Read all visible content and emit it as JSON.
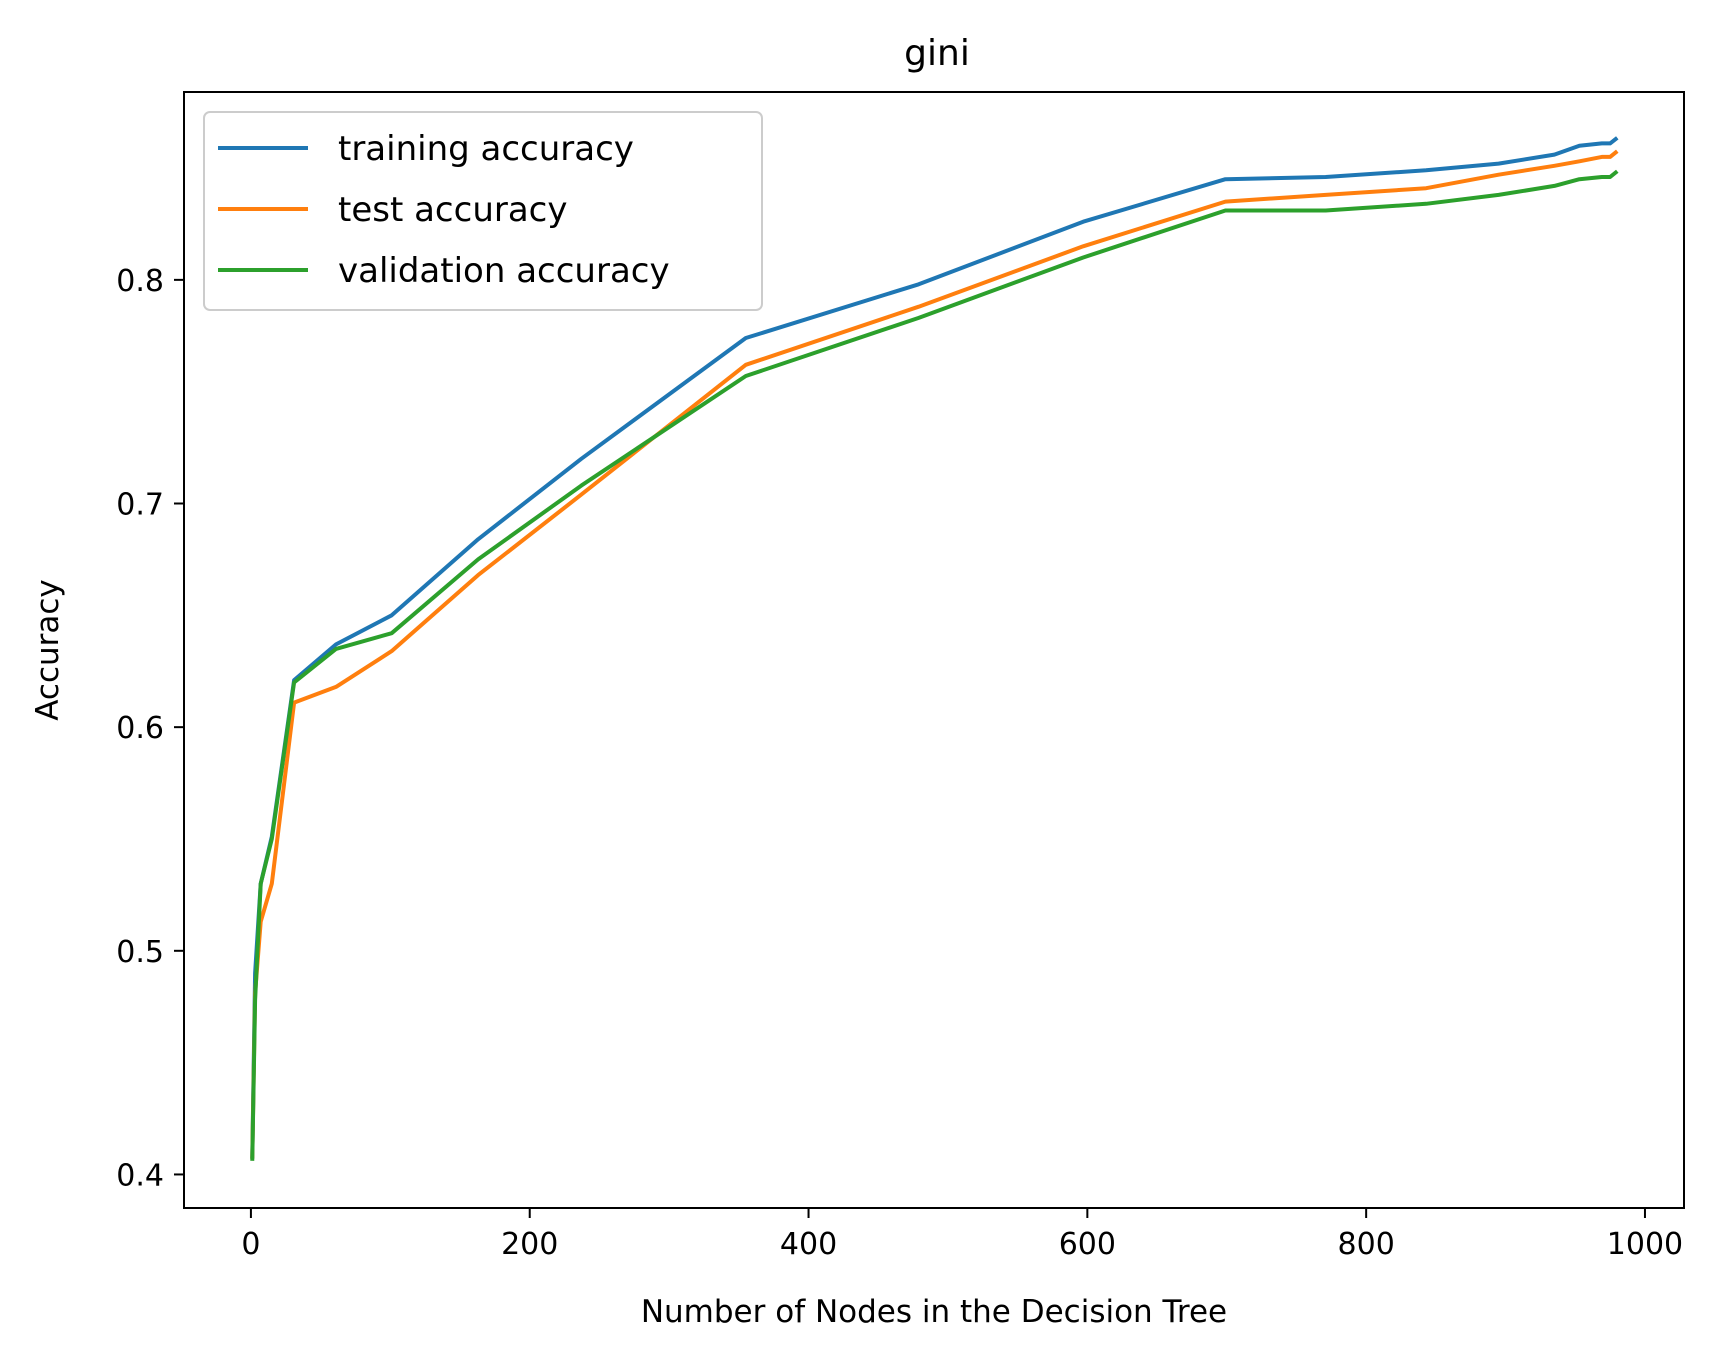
{
  "chart_data": {
    "type": "line",
    "title": "gini",
    "xlabel": "Number of Nodes in the Decision Tree",
    "ylabel": "Accuracy",
    "xlim": [
      -48,
      1028
    ],
    "ylim": [
      0.385,
      0.884
    ],
    "xticks": [
      0,
      200,
      400,
      600,
      800,
      1000
    ],
    "yticks": [
      0.4,
      0.5,
      0.6,
      0.7,
      0.8
    ],
    "xtick_labels": [
      "0",
      "200",
      "400",
      "600",
      "800",
      "1000"
    ],
    "ytick_labels": [
      "0.4",
      "0.5",
      "0.6",
      "0.7",
      "0.8"
    ],
    "grid": false,
    "legend_position": "upper-left",
    "series": [
      {
        "name": "training accuracy",
        "color": "#1f77b4",
        "x": [
          1,
          3,
          7,
          15,
          31,
          61,
          101,
          163,
          237,
          355,
          479,
          597,
          699,
          771,
          843,
          895,
          935,
          953,
          969,
          975,
          979
        ],
        "y": [
          0.408,
          0.49,
          0.53,
          0.551,
          0.621,
          0.637,
          0.65,
          0.684,
          0.72,
          0.774,
          0.798,
          0.826,
          0.845,
          0.846,
          0.849,
          0.852,
          0.856,
          0.86,
          0.861,
          0.861,
          0.863
        ]
      },
      {
        "name": "test accuracy",
        "color": "#ff7f0e",
        "x": [
          1,
          3,
          7,
          15,
          31,
          61,
          101,
          163,
          237,
          355,
          479,
          597,
          699,
          771,
          843,
          895,
          935,
          953,
          969,
          975,
          979
        ],
        "y": [
          0.408,
          0.481,
          0.513,
          0.53,
          0.611,
          0.618,
          0.634,
          0.668,
          0.704,
          0.762,
          0.788,
          0.815,
          0.835,
          0.838,
          0.841,
          0.847,
          0.851,
          0.853,
          0.855,
          0.855,
          0.857
        ]
      },
      {
        "name": "validation accuracy",
        "color": "#2ca02c",
        "x": [
          1,
          3,
          7,
          15,
          31,
          61,
          101,
          163,
          237,
          355,
          479,
          597,
          699,
          771,
          843,
          895,
          935,
          953,
          969,
          975,
          979
        ],
        "y": [
          0.407,
          0.478,
          0.53,
          0.55,
          0.62,
          0.635,
          0.642,
          0.675,
          0.708,
          0.757,
          0.783,
          0.81,
          0.831,
          0.831,
          0.834,
          0.838,
          0.842,
          0.845,
          0.846,
          0.846,
          0.848
        ]
      }
    ]
  }
}
